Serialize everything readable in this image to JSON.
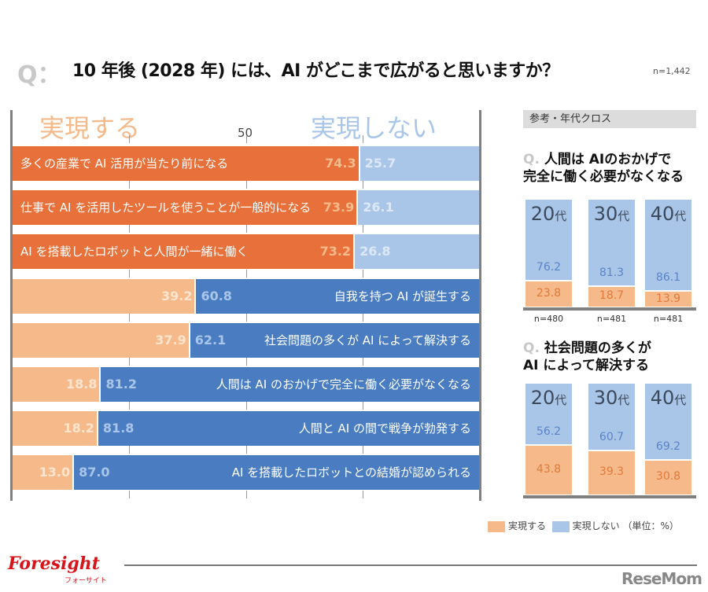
{
  "header": {
    "q_mark": "Q：",
    "title": "10 年後 (2028 年) には、AI がどこまで広がると思いますか？",
    "n": "n=1,442"
  },
  "colors": {
    "yes_strong": "#E8703A",
    "yes_light": "#F5B98A",
    "no_strong": "#4A7CC2",
    "no_light": "#A9C6E8"
  },
  "chart_data": [
    {
      "type": "bar",
      "stacked": true,
      "orientation": "horizontal",
      "yes_heading": "実現する",
      "no_heading": "実現しない",
      "midpoint_label": "50",
      "xlim": [
        0,
        100
      ],
      "categories": [
        "多くの産業で AI 活用が当たり前になる",
        "仕事で AI を活用したツールを使うことが一般的になる",
        "AI を搭載したロボットと人間が一緒に働く",
        "自我を持つ AI が誕生する",
        "社会問題の多くが AI によって解決する",
        "人間は AI のおかげで完全に働く必要がなくなる",
        "人間と AI の間で戦争が勃発する",
        "AI を搭載したロボットとの結婚が認められる"
      ],
      "series": [
        {
          "name": "実現する",
          "values": [
            74.3,
            73.9,
            73.2,
            39.2,
            37.9,
            18.8,
            18.2,
            13.0
          ],
          "labels": [
            "74.3",
            "73.9",
            "73.2",
            "39.2",
            "37.9",
            "18.8",
            "18.2",
            "13.0"
          ]
        },
        {
          "name": "実現しない",
          "values": [
            25.7,
            26.1,
            26.8,
            60.8,
            62.1,
            81.2,
            81.8,
            87.0
          ],
          "labels": [
            "25.7",
            "26.1",
            "26.8",
            "60.8",
            "62.1",
            "81.2",
            "81.8",
            "87.0"
          ]
        }
      ]
    },
    {
      "type": "bar",
      "stacked": true,
      "title": "人間は AIのおかげで完全に働く必要がなくなる",
      "title_lines": [
        "人間は AIのおかげで",
        "完全に働く必要がなくなる"
      ],
      "categories": [
        "20",
        "30",
        "40"
      ],
      "category_suffix": "代",
      "n_labels": [
        "n=480",
        "n=481",
        "n=481"
      ],
      "series": [
        {
          "name": "実現する",
          "values": [
            23.8,
            18.7,
            13.9
          ],
          "labels": [
            "23.8",
            "18.7",
            "13.9"
          ]
        },
        {
          "name": "実現しない",
          "values": [
            76.2,
            81.3,
            86.1
          ],
          "labels": [
            "76.2",
            "81.3",
            "86.1"
          ]
        }
      ]
    },
    {
      "type": "bar",
      "stacked": true,
      "title": "社会問題の多くが AI によって解決する",
      "title_lines": [
        "社会問題の多くが",
        "AI によって解決する"
      ],
      "categories": [
        "20",
        "30",
        "40"
      ],
      "category_suffix": "代",
      "series": [
        {
          "name": "実現する",
          "values": [
            43.8,
            39.3,
            30.8
          ],
          "labels": [
            "43.8",
            "39.3",
            "30.8"
          ]
        },
        {
          "name": "実現しない",
          "values": [
            56.2,
            60.7,
            69.2
          ],
          "labels": [
            "56.2",
            "60.7",
            "69.2"
          ]
        }
      ]
    }
  ],
  "side": {
    "heading": "参考・年代クロス",
    "q_prefix": "Q."
  },
  "legend": {
    "yes": "実現する",
    "no": "実現しない",
    "unit": "（単位：%）"
  },
  "footer": {
    "logo": "Foresight",
    "logo_sub": "フォーサイト",
    "watermark": "ReseMom"
  }
}
